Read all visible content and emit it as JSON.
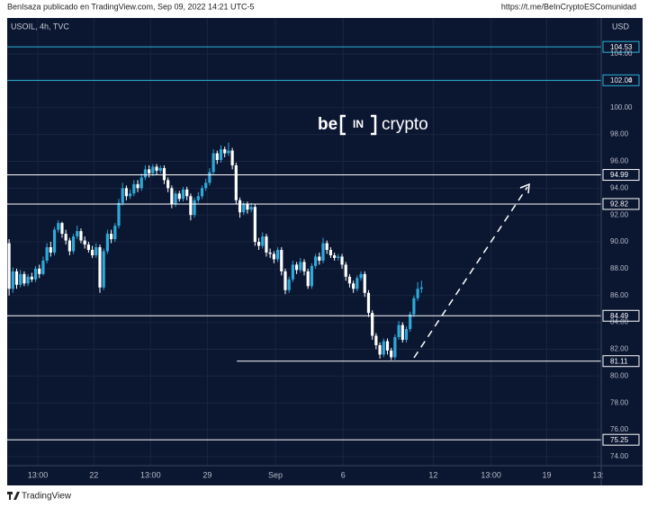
{
  "header": {
    "author_line": "BenIsaza publicado en TradingView.com, Sep 09, 2022 14:21 UTC-5",
    "link": "https://t.me/BeInCryptoESComunidad"
  },
  "footer": {
    "brand": "TradingView"
  },
  "watermark": {
    "left": "be",
    "middle": "IN",
    "right": "crypto"
  },
  "chart_data": {
    "type": "candlestick",
    "title": "USOIL, 4h, TVC",
    "y_axis_label": "USD",
    "colors": {
      "up": "#2ea9d8",
      "down": "#ffffff",
      "background": "#0b1631",
      "grid": "#1a2540"
    },
    "xlim": [
      0,
      157
    ],
    "ylim": [
      73.32,
      106.55
    ],
    "xticks": [
      {
        "value": 8.1,
        "label": "13:00"
      },
      {
        "value": 22.9,
        "label": "22"
      },
      {
        "value": 37.9,
        "label": "13:00"
      },
      {
        "value": 52.9,
        "label": "29"
      },
      {
        "value": 70.9,
        "label": "Sep"
      },
      {
        "value": 88.8,
        "label": "6"
      },
      {
        "value": 112.6,
        "label": "12"
      },
      {
        "value": 127.9,
        "label": "13:00"
      },
      {
        "value": 142.6,
        "label": "19"
      },
      {
        "value": 156.2,
        "label": "13:"
      }
    ],
    "yticks": [
      {
        "value": 74,
        "label": "74.00"
      },
      {
        "value": 76,
        "label": "76.00"
      },
      {
        "value": 78,
        "label": "78.00"
      },
      {
        "value": 80,
        "label": "80.00"
      },
      {
        "value": 82,
        "label": "82.00"
      },
      {
        "value": 84,
        "label": "84.00"
      },
      {
        "value": 86,
        "label": "86.00"
      },
      {
        "value": 88,
        "label": "88.00"
      },
      {
        "value": 90,
        "label": "90.00"
      },
      {
        "value": 92,
        "label": "92.00"
      },
      {
        "value": 94,
        "label": "94.00"
      },
      {
        "value": 96,
        "label": "96.00"
      },
      {
        "value": 98,
        "label": "98.00"
      },
      {
        "value": 100,
        "label": "100.00"
      },
      {
        "value": 102,
        "label": "102.00"
      },
      {
        "value": 104,
        "label": "104.00"
      }
    ],
    "grid": true,
    "levels": [
      {
        "value": 104.53,
        "color": "#2bb3d6"
      },
      {
        "value": 102.04,
        "color": "#2bb3d6"
      },
      {
        "value": 94.99,
        "color": "#ffffff"
      },
      {
        "value": 92.82,
        "color": "#ffffff"
      },
      {
        "value": 84.49,
        "color": "#ffffff"
      },
      {
        "value": 81.11,
        "color": "#ffffff",
        "from": 60.7
      },
      {
        "value": 75.25,
        "color": "#ffffff"
      }
    ],
    "open": [
      89.9,
      86.5,
      87.8,
      86.8,
      87.6,
      86.9,
      87.4,
      87.2,
      88.0,
      87.6,
      88.6,
      89.6,
      89.2,
      90.9,
      91.4,
      90.6,
      90.1,
      89.3,
      90.4,
      90.8,
      90.1,
      89.8,
      89.4,
      89.0,
      89.6,
      86.6,
      89.3,
      90.6,
      90.2,
      91.2,
      92.9,
      94.0,
      93.4,
      93.6,
      94.3,
      94.0,
      94.8,
      95.4,
      95.1,
      95.6,
      95.3,
      95.5,
      94.6,
      94.0,
      92.8,
      93.6,
      93.2,
      93.9,
      93.4,
      92.0,
      93.1,
      93.4,
      94.0,
      94.4,
      95.2,
      96.6,
      96.1,
      96.9,
      96.6,
      96.8,
      95.7,
      93.1,
      92.2,
      92.8,
      92.4,
      92.6,
      90.0,
      89.7,
      90.4,
      89.2,
      89.1,
      88.7,
      89.4,
      87.8,
      86.4,
      87.2,
      88.3,
      87.9,
      88.5,
      87.8,
      86.7,
      88.2,
      88.9,
      88.6,
      89.9,
      89.4,
      89.0,
      88.8,
      88.9,
      88.3,
      87.4,
      86.9,
      86.5,
      87.3,
      87.6,
      86.2,
      84.7,
      83.0,
      82.3,
      81.6,
      82.6,
      81.9,
      81.4,
      82.9,
      83.8,
      82.7,
      83.5,
      84.6,
      85.8,
      86.5
    ],
    "high": [
      90.2,
      88.1,
      88.0,
      87.9,
      87.8,
      87.6,
      87.7,
      88.2,
      88.3,
      88.9,
      89.9,
      90.0,
      91.1,
      91.6,
      91.5,
      90.9,
      90.3,
      90.6,
      91.2,
      91.0,
      90.4,
      90.0,
      89.7,
      89.9,
      89.8,
      89.5,
      90.9,
      90.9,
      91.4,
      93.2,
      94.4,
      94.2,
      93.9,
      94.6,
      94.6,
      95.1,
      95.7,
      95.7,
      95.8,
      95.8,
      95.7,
      95.7,
      94.8,
      94.2,
      93.8,
      93.8,
      94.1,
      94.1,
      93.6,
      93.3,
      93.7,
      94.2,
      94.7,
      95.5,
      96.9,
      96.8,
      97.2,
      97.1,
      97.4,
      97.0,
      95.9,
      93.3,
      93.0,
      93.0,
      92.9,
      92.8,
      90.3,
      90.7,
      90.6,
      89.5,
      89.3,
      89.6,
      89.6,
      88.0,
      87.4,
      88.6,
      88.5,
      88.8,
      88.7,
      88.0,
      88.4,
      89.1,
      89.2,
      90.3,
      90.1,
      89.6,
      89.2,
      89.1,
      89.1,
      88.5,
      87.6,
      87.1,
      87.5,
      87.8,
      87.8,
      86.4,
      84.9,
      83.2,
      82.5,
      82.8,
      82.8,
      82.1,
      83.1,
      84.1,
      84.0,
      83.7,
      84.8,
      86.0,
      87.0,
      87.1
    ],
    "low": [
      86.0,
      86.2,
      86.5,
      86.6,
      86.7,
      86.7,
      87.0,
      87.0,
      87.3,
      87.5,
      88.4,
      88.9,
      89.0,
      90.7,
      90.3,
      89.8,
      89.0,
      89.1,
      90.2,
      89.9,
      89.5,
      89.2,
      88.8,
      88.8,
      86.2,
      86.4,
      89.1,
      89.9,
      90.0,
      91.0,
      92.7,
      93.1,
      93.2,
      93.4,
      93.7,
      93.8,
      94.6,
      94.8,
      94.9,
      95.0,
      95.1,
      94.3,
      93.7,
      92.5,
      92.6,
      93.0,
      93.0,
      93.1,
      91.6,
      91.8,
      92.9,
      93.2,
      93.8,
      94.2,
      95.0,
      95.8,
      95.9,
      96.3,
      96.4,
      95.4,
      92.8,
      91.8,
      92.0,
      92.1,
      92.2,
      89.7,
      89.4,
      89.5,
      88.9,
      88.8,
      88.4,
      88.5,
      87.5,
      86.1,
      86.2,
      87.0,
      87.6,
      87.7,
      87.5,
      86.5,
      86.5,
      88.0,
      88.3,
      88.4,
      89.1,
      88.8,
      88.6,
      88.6,
      88.0,
      87.1,
      86.6,
      86.2,
      86.3,
      87.1,
      85.9,
      84.4,
      82.7,
      82.0,
      81.3,
      81.4,
      81.6,
      81.2,
      81.2,
      82.7,
      82.5,
      82.5,
      83.3,
      84.4,
      85.6,
      86.2
    ],
    "close": [
      86.5,
      87.8,
      86.8,
      87.6,
      86.9,
      87.4,
      87.2,
      88.0,
      87.6,
      88.6,
      89.6,
      89.2,
      90.9,
      91.4,
      90.6,
      90.1,
      89.3,
      90.4,
      90.8,
      90.1,
      89.8,
      89.4,
      89.0,
      89.6,
      86.6,
      89.3,
      90.6,
      90.2,
      91.2,
      92.9,
      94.0,
      93.4,
      93.6,
      94.3,
      94.0,
      94.8,
      95.4,
      95.1,
      95.6,
      95.3,
      95.5,
      94.6,
      94.0,
      92.8,
      93.6,
      93.2,
      93.9,
      93.4,
      92.0,
      93.1,
      93.4,
      94.0,
      94.4,
      95.2,
      96.6,
      96.1,
      96.9,
      96.6,
      96.8,
      95.7,
      93.1,
      92.2,
      92.8,
      92.4,
      92.6,
      90.0,
      89.7,
      90.4,
      89.2,
      89.1,
      88.7,
      89.4,
      87.8,
      86.4,
      87.2,
      88.3,
      87.9,
      88.5,
      87.8,
      86.7,
      88.2,
      88.9,
      88.6,
      89.9,
      89.4,
      89.0,
      88.8,
      88.9,
      88.3,
      87.4,
      86.9,
      86.5,
      87.3,
      87.6,
      86.2,
      84.7,
      83.0,
      82.3,
      81.6,
      82.6,
      81.9,
      81.4,
      82.9,
      83.8,
      82.7,
      83.5,
      84.6,
      85.8,
      86.5,
      86.6
    ]
  }
}
